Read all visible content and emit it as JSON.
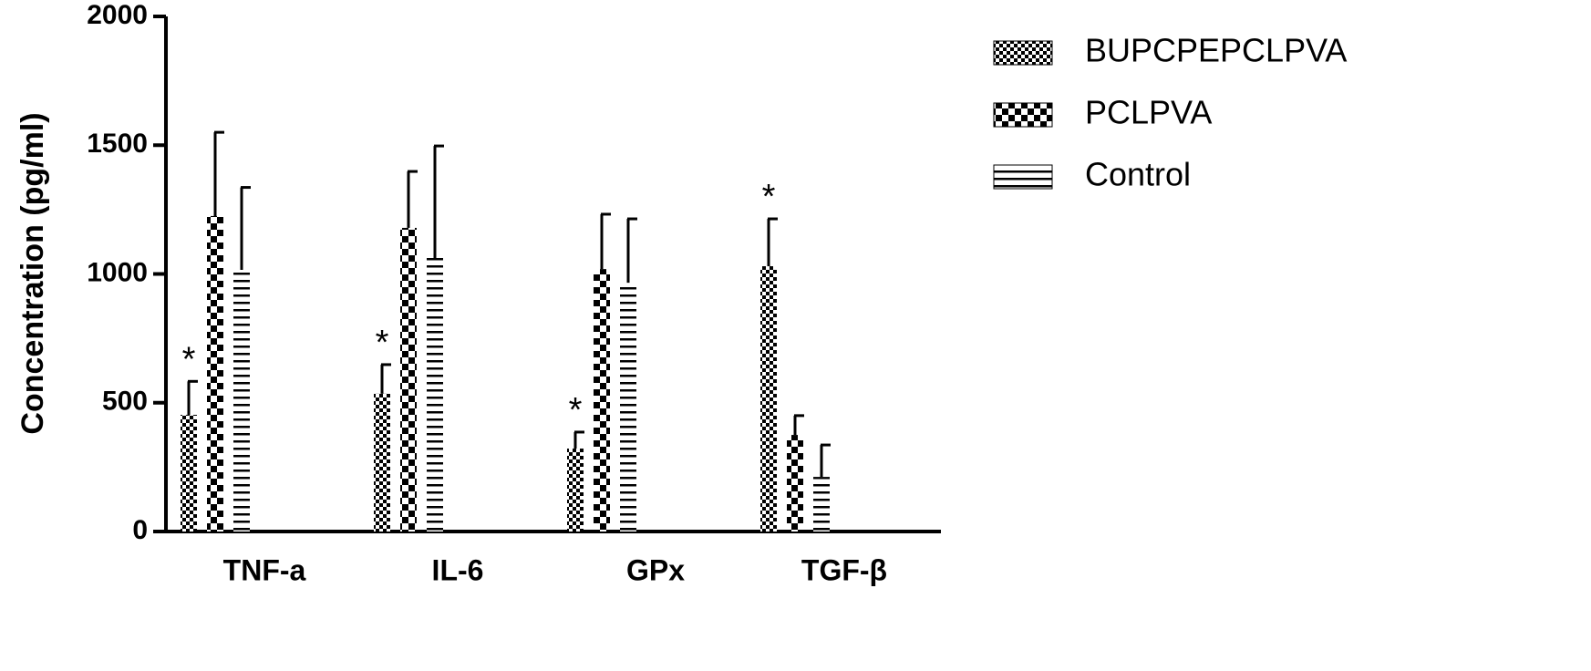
{
  "chart_data": {
    "type": "bar",
    "y_label": "Concentration (pg/ml)",
    "categories": [
      "TNF-a",
      "IL-6",
      "GPx",
      "TGF-β"
    ],
    "series": [
      {
        "name": "BUPCPEPCLPVA",
        "pattern": "checker-fine",
        "color": "#000000",
        "values": [
          453,
          535,
          322,
          1030
        ],
        "errors": [
          130,
          113,
          64,
          184
        ],
        "markers": [
          "*",
          "*",
          "*",
          "*"
        ]
      },
      {
        "name": "PCLPVA",
        "pattern": "checker-coarse",
        "color": "#000000",
        "values": [
          1225,
          1179,
          1019,
          375
        ],
        "errors": [
          325,
          219,
          213,
          75
        ]
      },
      {
        "name": "Control",
        "pattern": "horizontal-lines",
        "color": "#000000",
        "values": [
          1016,
          1062,
          966,
          212
        ],
        "errors": [
          320,
          435,
          248,
          124
        ]
      }
    ],
    "ylim": [
      0,
      2000
    ],
    "yticks": [
      0,
      500,
      1000,
      1500,
      2000
    ],
    "grid": false
  }
}
